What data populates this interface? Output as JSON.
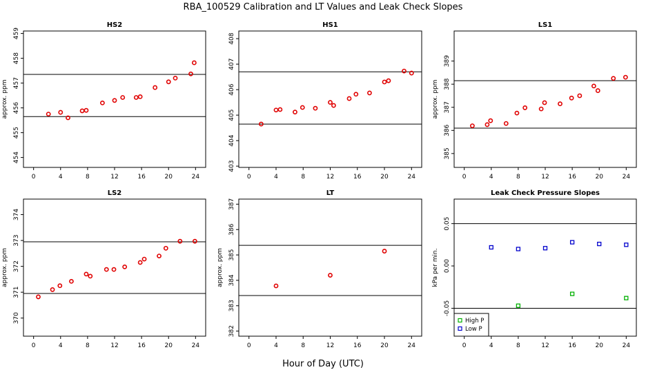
{
  "figure": {
    "suptitle": "RBA_100529  Calibration and LT Values and Leak Check Slopes",
    "xlabel": "Hour of Day (UTC)"
  },
  "colors": {
    "cal": "#e00000",
    "high": "#00b000",
    "low": "#0000cc",
    "axis": "#000000"
  },
  "chart_data": [
    {
      "type": "scatter",
      "id": "hs2",
      "title": "HS2",
      "ylabel": "approx. ppm",
      "xlim": [
        -1.5,
        25.5
      ],
      "ylim": [
        453.6,
        459.1
      ],
      "xticks": [
        0,
        4,
        8,
        12,
        16,
        20,
        24
      ],
      "yticks": [
        454,
        455,
        456,
        457,
        458,
        459
      ],
      "hlines": [
        455.65,
        457.35
      ],
      "points": [
        [
          2.2,
          455.75
        ],
        [
          4,
          455.82
        ],
        [
          5.1,
          455.6
        ],
        [
          7.2,
          455.88
        ],
        [
          7.8,
          455.9
        ],
        [
          10.2,
          456.2
        ],
        [
          12,
          456.3
        ],
        [
          13.2,
          456.42
        ],
        [
          15.2,
          456.42
        ],
        [
          15.8,
          456.45
        ],
        [
          18,
          456.82
        ],
        [
          20,
          457.05
        ],
        [
          21,
          457.2
        ],
        [
          23.3,
          457.37
        ],
        [
          23.8,
          457.82
        ]
      ]
    },
    {
      "type": "scatter",
      "id": "hs1",
      "title": "HS1",
      "ylabel": "",
      "xlim": [
        -1.5,
        25.5
      ],
      "ylim": [
        402.95,
        408.3
      ],
      "xticks": [
        0,
        4,
        8,
        12,
        16,
        20,
        24
      ],
      "yticks": [
        403,
        404,
        405,
        406,
        407,
        408
      ],
      "hlines": [
        404.65,
        406.7
      ],
      "points": [
        [
          1.8,
          404.65
        ],
        [
          4,
          405.2
        ],
        [
          4.6,
          405.22
        ],
        [
          6.8,
          405.12
        ],
        [
          7.9,
          405.3
        ],
        [
          9.8,
          405.27
        ],
        [
          12,
          405.5
        ],
        [
          12.5,
          405.38
        ],
        [
          14.8,
          405.65
        ],
        [
          15.8,
          405.82
        ],
        [
          17.8,
          405.87
        ],
        [
          20,
          406.3
        ],
        [
          20.6,
          406.35
        ],
        [
          22.9,
          406.73
        ],
        [
          24,
          406.65
        ]
      ]
    },
    {
      "type": "scatter",
      "id": "ls1",
      "title": "LS1",
      "ylabel": "approx. ppm",
      "xlim": [
        -1.5,
        25.5
      ],
      "ylim": [
        384.4,
        390.3
      ],
      "xticks": [
        0,
        4,
        8,
        12,
        16,
        20,
        24
      ],
      "yticks": [
        385,
        386,
        387,
        388,
        389
      ],
      "hlines": [
        386.1,
        388.15
      ],
      "points": [
        [
          1.2,
          386.2
        ],
        [
          3.4,
          386.25
        ],
        [
          3.9,
          386.42
        ],
        [
          6.2,
          386.3
        ],
        [
          7.8,
          386.75
        ],
        [
          9,
          386.98
        ],
        [
          11.4,
          386.93
        ],
        [
          11.9,
          387.2
        ],
        [
          14.2,
          387.15
        ],
        [
          15.9,
          387.4
        ],
        [
          17.1,
          387.5
        ],
        [
          19.2,
          387.92
        ],
        [
          19.8,
          387.72
        ],
        [
          22.1,
          388.25
        ],
        [
          23.9,
          388.3
        ]
      ]
    },
    {
      "type": "scatter",
      "id": "ls2",
      "title": "LS2",
      "ylabel": "approx. ppm",
      "xlim": [
        -1.5,
        25.5
      ],
      "ylim": [
        369.3,
        374.6
      ],
      "xticks": [
        0,
        4,
        8,
        12,
        16,
        20,
        24
      ],
      "yticks": [
        370,
        371,
        372,
        373,
        374
      ],
      "hlines": [
        370.95,
        372.95
      ],
      "points": [
        [
          0.7,
          370.82
        ],
        [
          2.8,
          371.1
        ],
        [
          3.9,
          371.25
        ],
        [
          5.6,
          371.42
        ],
        [
          7.8,
          371.7
        ],
        [
          8.4,
          371.62
        ],
        [
          10.8,
          371.88
        ],
        [
          11.9,
          371.88
        ],
        [
          13.5,
          371.98
        ],
        [
          15.8,
          372.15
        ],
        [
          16.4,
          372.28
        ],
        [
          18.6,
          372.4
        ],
        [
          19.6,
          372.7
        ],
        [
          21.7,
          372.97
        ],
        [
          23.9,
          372.97
        ]
      ]
    },
    {
      "type": "scatter",
      "id": "lt",
      "title": "LT",
      "ylabel": "approx. ppm",
      "xlim": [
        -1.5,
        25.5
      ],
      "ylim": [
        381.8,
        387.2
      ],
      "xticks": [
        0,
        4,
        8,
        12,
        16,
        20,
        24
      ],
      "yticks": [
        382,
        383,
        384,
        385,
        386,
        387
      ],
      "hlines": [
        383.4,
        385.38
      ],
      "points": [
        [
          4,
          383.78
        ],
        [
          12,
          384.2
        ],
        [
          20,
          385.15
        ]
      ]
    },
    {
      "type": "scatter",
      "id": "leak",
      "title": "Leak Check Pressure Slopes",
      "ylabel": "kPa per min.",
      "xlim": [
        -1.5,
        25.5
      ],
      "ylim": [
        -0.083,
        0.079
      ],
      "xticks": [
        0,
        4,
        8,
        12,
        16,
        20,
        24
      ],
      "yticks": [
        -0.05,
        0.0,
        0.05
      ],
      "ytick_labels": [
        "-0.05",
        "0.00",
        "0.05"
      ],
      "hlines": [
        0.05,
        -0.05
      ],
      "series": [
        {
          "name": "High P",
          "color": "high",
          "points": [
            [
              8,
              -0.047
            ],
            [
              16,
              -0.033
            ],
            [
              24,
              -0.038
            ]
          ]
        },
        {
          "name": "Low P",
          "color": "low",
          "points": [
            [
              4,
              0.022
            ],
            [
              8,
              0.02
            ],
            [
              12,
              0.021
            ],
            [
              16,
              0.028
            ],
            [
              20,
              0.026
            ],
            [
              24,
              0.025
            ]
          ]
        }
      ],
      "legend": "bottom-left"
    }
  ]
}
